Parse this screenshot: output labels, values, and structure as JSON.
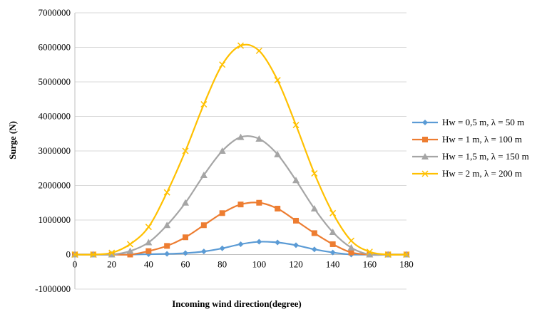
{
  "chart_data": {
    "type": "line",
    "title": "",
    "xlabel": "Incoming wind direction(degree)",
    "ylabel": "Surge (N)",
    "xlim": [
      0,
      180
    ],
    "ylim": [
      -1000000,
      7000000
    ],
    "x_ticks": [
      "0",
      "20",
      "40",
      "60",
      "80",
      "100",
      "120",
      "140",
      "160",
      "180"
    ],
    "y_ticks": [
      "-1000000",
      "0",
      "1000000",
      "2000000",
      "3000000",
      "4000000",
      "5000000",
      "6000000",
      "7000000"
    ],
    "grid": "horizontal",
    "legend_position": "right",
    "x": [
      0,
      10,
      20,
      30,
      40,
      50,
      60,
      70,
      80,
      90,
      100,
      110,
      120,
      130,
      140,
      150,
      160,
      170,
      180
    ],
    "series": [
      {
        "name": "Hw = 0,5 m, λ = 50 m",
        "color": "#5b9bd5",
        "marker": "diamond",
        "values": [
          0,
          0,
          0,
          0,
          10000,
          20000,
          40000,
          90000,
          180000,
          300000,
          370000,
          350000,
          270000,
          150000,
          60000,
          0,
          0,
          0,
          0
        ]
      },
      {
        "name": "Hw = 1 m, λ = 100 m",
        "color": "#ed7d31",
        "marker": "square",
        "values": [
          0,
          0,
          0,
          0,
          100000,
          250000,
          500000,
          850000,
          1200000,
          1450000,
          1500000,
          1330000,
          980000,
          620000,
          300000,
          60000,
          0,
          0,
          0
        ]
      },
      {
        "name": "Hw = 1,5 m, λ = 150 m",
        "color": "#a5a5a5",
        "marker": "triangle",
        "values": [
          0,
          0,
          0,
          100000,
          350000,
          850000,
          1500000,
          2300000,
          3000000,
          3400000,
          3350000,
          2900000,
          2150000,
          1330000,
          650000,
          200000,
          0,
          0,
          0
        ]
      },
      {
        "name": "Hw = 2 m, λ = 200 m",
        "color": "#ffc000",
        "marker": "x",
        "values": [
          0,
          0,
          50000,
          300000,
          800000,
          1800000,
          3000000,
          4350000,
          5500000,
          6050000,
          5900000,
          5050000,
          3750000,
          2350000,
          1200000,
          400000,
          80000,
          0,
          0
        ]
      }
    ]
  }
}
